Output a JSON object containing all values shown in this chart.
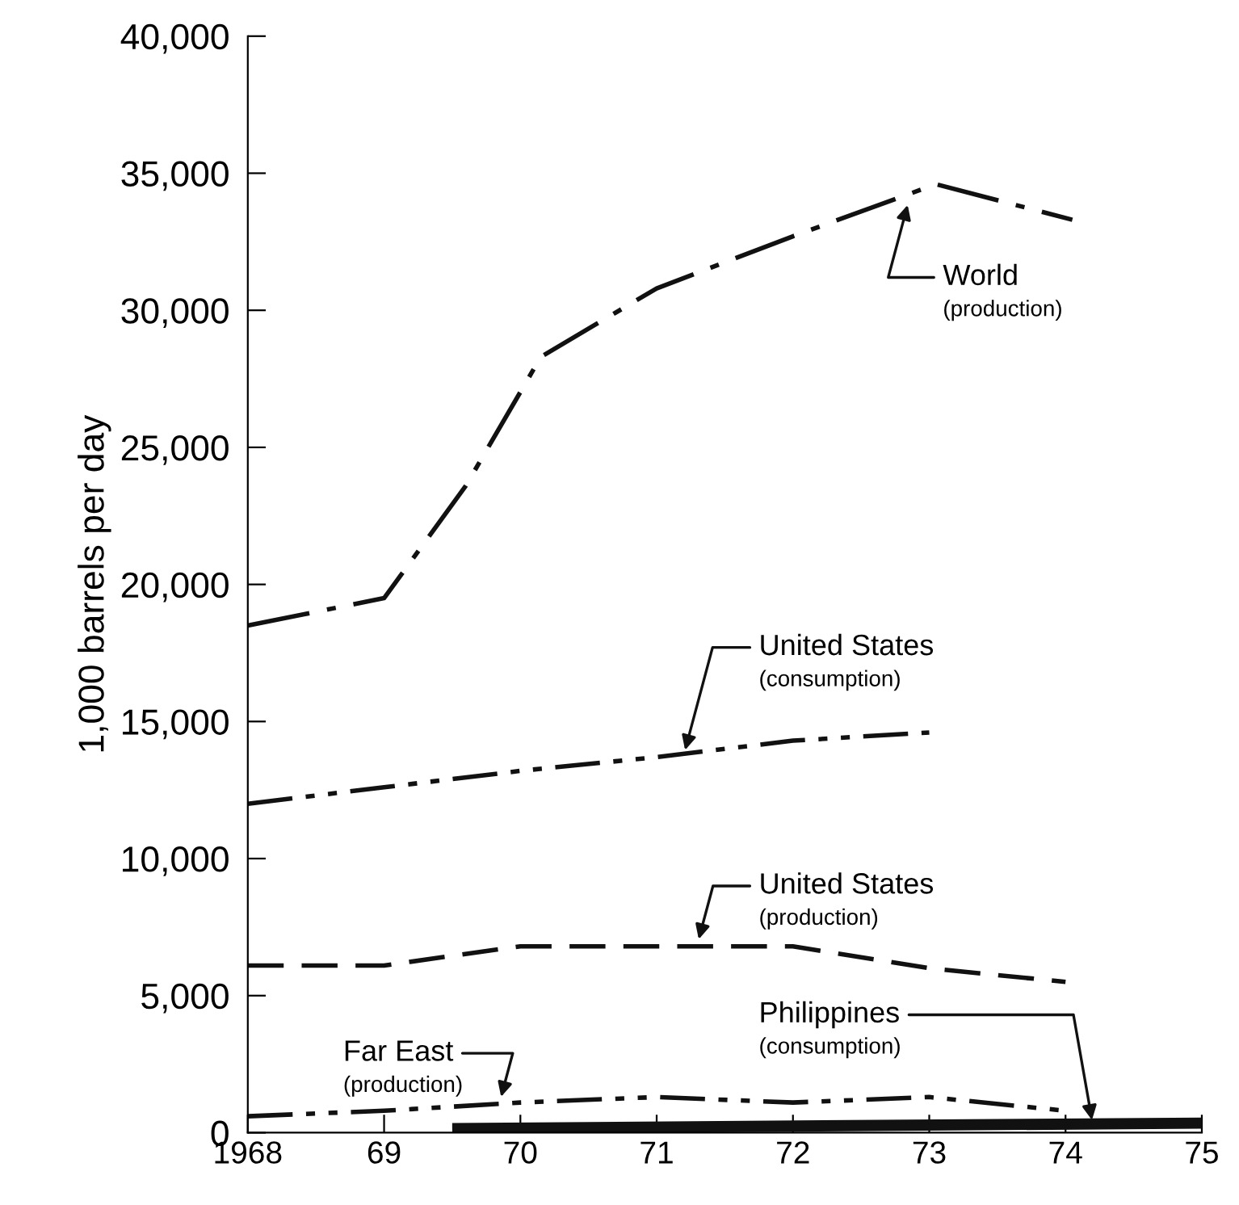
{
  "chart_data": {
    "type": "line",
    "ylabel": "1,000 barrels per day",
    "xlim": [
      1968,
      1975
    ],
    "ylim": [
      0,
      40000
    ],
    "xticks": [
      {
        "value": 1968,
        "label": "1968"
      },
      {
        "value": 1969,
        "label": "69"
      },
      {
        "value": 1970,
        "label": "70"
      },
      {
        "value": 1971,
        "label": "71"
      },
      {
        "value": 1972,
        "label": "72"
      },
      {
        "value": 1973,
        "label": "73"
      },
      {
        "value": 1974,
        "label": "74"
      },
      {
        "value": 1975,
        "label": "75"
      }
    ],
    "yticks": [
      {
        "value": 0,
        "label": "0"
      },
      {
        "value": 5000,
        "label": "5,000"
      },
      {
        "value": 10000,
        "label": "10,000"
      },
      {
        "value": 15000,
        "label": "15,000"
      },
      {
        "value": 20000,
        "label": "20,000"
      },
      {
        "value": 25000,
        "label": "25,000"
      },
      {
        "value": 30000,
        "label": "30,000"
      },
      {
        "value": 35000,
        "label": "35,000"
      },
      {
        "value": 40000,
        "label": "40,000"
      }
    ],
    "grid": false,
    "legend": false,
    "marker": "none",
    "series": [
      {
        "name": "World",
        "color": "#111111",
        "line_style": "dashdot",
        "x": [
          1968,
          1969,
          1969.6,
          1970.15,
          1971,
          1972,
          1973.05,
          1974.05
        ],
        "values": [
          18500,
          19500,
          23600,
          28300,
          30800,
          32700,
          34600,
          33300
        ]
      },
      {
        "name": "United States",
        "color": "#111111",
        "line_style": "dashdotdot",
        "x": [
          1968,
          1969,
          1970,
          1971,
          1972,
          1973
        ],
        "values": [
          12000,
          12600,
          13200,
          13700,
          14300,
          14600
        ]
      },
      {
        "name": "United States",
        "color": "#111111",
        "line_style": "dashed",
        "x": [
          1968,
          1969,
          1970,
          1971,
          1972,
          1973,
          1974
        ],
        "values": [
          6100,
          6100,
          6800,
          6800,
          6800,
          6000,
          5500
        ]
      },
      {
        "name": "Far East",
        "color": "#111111",
        "line_style": "dashdotdot",
        "x": [
          1968,
          1969,
          1970,
          1971,
          1972,
          1973,
          1974
        ],
        "values": [
          600,
          800,
          1100,
          1300,
          1100,
          1300,
          800
        ]
      },
      {
        "name": "Philippines",
        "color": "#111111",
        "line_style": "solid",
        "x": [
          1969.5,
          1975
        ],
        "values": [
          150,
          350
        ]
      }
    ],
    "annotations": [
      {
        "text": "(production)",
        "x": 1972.85,
        "y": 34000
      },
      {
        "text": "(consumption)",
        "x": 1971.2,
        "y": 13800
      },
      {
        "text": "(production)",
        "x": 1971.3,
        "y": 6900
      },
      {
        "text": "(production)",
        "x": 1969.85,
        "y": 1150
      },
      {
        "text": "(consumption)",
        "x": 1974.2,
        "y": 300
      }
    ]
  }
}
